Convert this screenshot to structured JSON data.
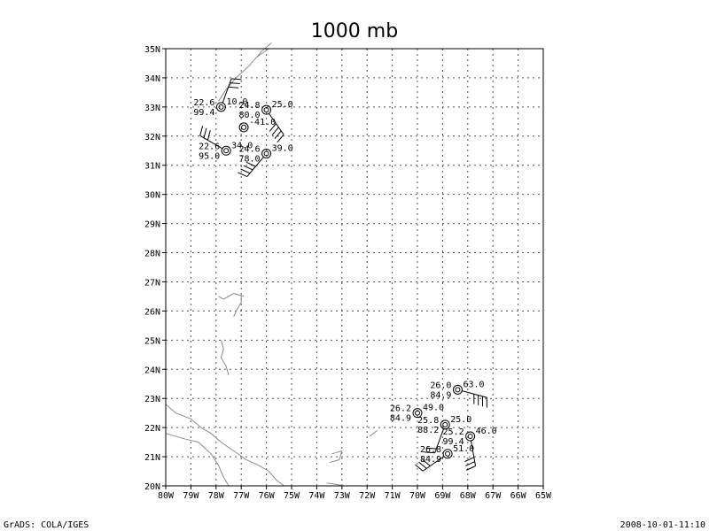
{
  "title": "1000 mb",
  "footer": {
    "left": "GrADS: COLA/IGES",
    "right": "2008-10-01-11:10"
  },
  "axes": {
    "lon_labels": [
      "80W",
      "79W",
      "78W",
      "77W",
      "76W",
      "75W",
      "74W",
      "73W",
      "72W",
      "71W",
      "70W",
      "69W",
      "68W",
      "67W",
      "66W",
      "65W"
    ],
    "lat_labels": [
      "20N",
      "21N",
      "22N",
      "23N",
      "24N",
      "25N",
      "26N",
      "27N",
      "28N",
      "29N",
      "30N",
      "31N",
      "32N",
      "33N",
      "34N",
      "35N"
    ],
    "lon_range": [
      -80,
      -65
    ],
    "lat_range": [
      20,
      35
    ],
    "grid": true
  },
  "colors": {
    "ink": "#000000",
    "coast": "#8c8c8c",
    "grid": "#555555"
  },
  "stations": [
    {
      "lon": -77.8,
      "lat": 33.0,
      "temp": "22.6",
      "rh": "99.4",
      "val": "10.0",
      "barb_dir": 20,
      "barbs": 3
    },
    {
      "lon": -76.0,
      "lat": 32.9,
      "temp": "24.8",
      "rh": "80.0",
      "val": "25.0",
      "barb_dir": 145,
      "barbs": 4
    },
    {
      "lon": -76.9,
      "lat": 32.3,
      "temp": "",
      "rh": "",
      "val": "-41.0",
      "barb_dir": null,
      "barbs": 0
    },
    {
      "lon": -77.6,
      "lat": 31.5,
      "temp": "22.6",
      "rh": "95.0",
      "val": "34.0",
      "barb_dir": 300,
      "barbs": 3
    },
    {
      "lon": -76.0,
      "lat": 31.4,
      "temp": "24.6",
      "rh": "78.0",
      "val": "39.0",
      "barb_dir": 220,
      "barbs": 4
    },
    {
      "lon": -68.4,
      "lat": 23.3,
      "temp": "26.0",
      "rh": "84.9",
      "val": "63.0",
      "barb_dir": 105,
      "barbs": 4
    },
    {
      "lon": -70.0,
      "lat": 22.5,
      "temp": "26.2",
      "rh": "84.9",
      "val": "49.0",
      "barb_dir": null,
      "barbs": 0
    },
    {
      "lon": -68.9,
      "lat": 22.1,
      "temp": "25.8",
      "rh": "88.2",
      "val": "25.0",
      "barb_dir": 200,
      "barbs": 2
    },
    {
      "lon": -67.9,
      "lat": 21.7,
      "temp": "25.2",
      "rh": "99.4",
      "val": "46.0",
      "barb_dir": 170,
      "barbs": 3
    },
    {
      "lon": -68.8,
      "lat": 21.1,
      "temp": "26.8",
      "rh": "84.9",
      "val": "51.0",
      "barb_dir": 235,
      "barbs": 3
    }
  ]
}
